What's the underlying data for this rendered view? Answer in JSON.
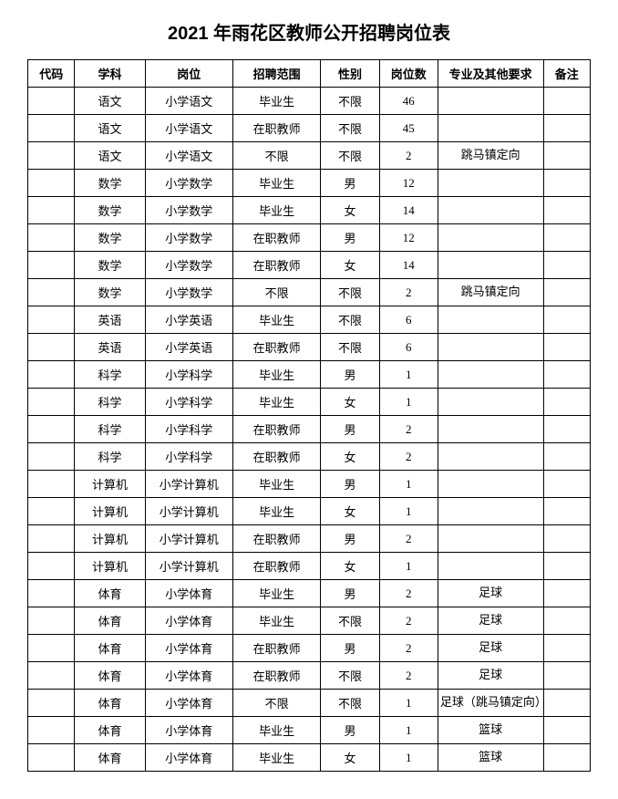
{
  "title": "2021 年雨花区教师公开招聘岗位表",
  "columns": [
    {
      "key": "code",
      "label": "代码",
      "cls": "col-code"
    },
    {
      "key": "subject",
      "label": "学科",
      "cls": "col-subject"
    },
    {
      "key": "position",
      "label": "岗位",
      "cls": "col-position"
    },
    {
      "key": "scope",
      "label": "招聘范围",
      "cls": "col-scope"
    },
    {
      "key": "gender",
      "label": "性别",
      "cls": "col-gender"
    },
    {
      "key": "count",
      "label": "岗位数",
      "cls": "col-count"
    },
    {
      "key": "req",
      "label": "专业及其他要求",
      "cls": "col-req"
    },
    {
      "key": "note",
      "label": "备注",
      "cls": "col-note"
    }
  ],
  "rows": [
    {
      "code": "",
      "subject": "语文",
      "position": "小学语文",
      "scope": "毕业生",
      "gender": "不限",
      "count": "46",
      "req": "",
      "note": ""
    },
    {
      "code": "",
      "subject": "语文",
      "position": "小学语文",
      "scope": "在职教师",
      "gender": "不限",
      "count": "45",
      "req": "",
      "note": ""
    },
    {
      "code": "",
      "subject": "语文",
      "position": "小学语文",
      "scope": "不限",
      "gender": "不限",
      "count": "2",
      "req": "跳马镇定向",
      "note": ""
    },
    {
      "code": "",
      "subject": "数学",
      "position": "小学数学",
      "scope": "毕业生",
      "gender": "男",
      "count": "12",
      "req": "",
      "note": ""
    },
    {
      "code": "",
      "subject": "数学",
      "position": "小学数学",
      "scope": "毕业生",
      "gender": "女",
      "count": "14",
      "req": "",
      "note": ""
    },
    {
      "code": "",
      "subject": "数学",
      "position": "小学数学",
      "scope": "在职教师",
      "gender": "男",
      "count": "12",
      "req": "",
      "note": ""
    },
    {
      "code": "",
      "subject": "数学",
      "position": "小学数学",
      "scope": "在职教师",
      "gender": "女",
      "count": "14",
      "req": "",
      "note": ""
    },
    {
      "code": "",
      "subject": "数学",
      "position": "小学数学",
      "scope": "不限",
      "gender": "不限",
      "count": "2",
      "req": "跳马镇定向",
      "note": ""
    },
    {
      "code": "",
      "subject": "英语",
      "position": "小学英语",
      "scope": "毕业生",
      "gender": "不限",
      "count": "6",
      "req": "",
      "note": ""
    },
    {
      "code": "",
      "subject": "英语",
      "position": "小学英语",
      "scope": "在职教师",
      "gender": "不限",
      "count": "6",
      "req": "",
      "note": ""
    },
    {
      "code": "",
      "subject": "科学",
      "position": "小学科学",
      "scope": "毕业生",
      "gender": "男",
      "count": "1",
      "req": "",
      "note": ""
    },
    {
      "code": "",
      "subject": "科学",
      "position": "小学科学",
      "scope": "毕业生",
      "gender": "女",
      "count": "1",
      "req": "",
      "note": ""
    },
    {
      "code": "",
      "subject": "科学",
      "position": "小学科学",
      "scope": "在职教师",
      "gender": "男",
      "count": "2",
      "req": "",
      "note": ""
    },
    {
      "code": "",
      "subject": "科学",
      "position": "小学科学",
      "scope": "在职教师",
      "gender": "女",
      "count": "2",
      "req": "",
      "note": ""
    },
    {
      "code": "",
      "subject": "计算机",
      "position": "小学计算机",
      "scope": "毕业生",
      "gender": "男",
      "count": "1",
      "req": "",
      "note": ""
    },
    {
      "code": "",
      "subject": "计算机",
      "position": "小学计算机",
      "scope": "毕业生",
      "gender": "女",
      "count": "1",
      "req": "",
      "note": ""
    },
    {
      "code": "",
      "subject": "计算机",
      "position": "小学计算机",
      "scope": "在职教师",
      "gender": "男",
      "count": "2",
      "req": "",
      "note": ""
    },
    {
      "code": "",
      "subject": "计算机",
      "position": "小学计算机",
      "scope": "在职教师",
      "gender": "女",
      "count": "1",
      "req": "",
      "note": ""
    },
    {
      "code": "",
      "subject": "体育",
      "position": "小学体育",
      "scope": "毕业生",
      "gender": "男",
      "count": "2",
      "req": "足球",
      "note": ""
    },
    {
      "code": "",
      "subject": "体育",
      "position": "小学体育",
      "scope": "毕业生",
      "gender": "不限",
      "count": "2",
      "req": "足球",
      "note": ""
    },
    {
      "code": "",
      "subject": "体育",
      "position": "小学体育",
      "scope": "在职教师",
      "gender": "男",
      "count": "2",
      "req": "足球",
      "note": ""
    },
    {
      "code": "",
      "subject": "体育",
      "position": "小学体育",
      "scope": "在职教师",
      "gender": "不限",
      "count": "2",
      "req": "足球",
      "note": ""
    },
    {
      "code": "",
      "subject": "体育",
      "position": "小学体育",
      "scope": "不限",
      "gender": "不限",
      "count": "1",
      "req": "足球（跳马镇定向）",
      "note": ""
    },
    {
      "code": "",
      "subject": "体育",
      "position": "小学体育",
      "scope": "毕业生",
      "gender": "男",
      "count": "1",
      "req": "篮球",
      "note": ""
    },
    {
      "code": "",
      "subject": "体育",
      "position": "小学体育",
      "scope": "毕业生",
      "gender": "女",
      "count": "1",
      "req": "篮球",
      "note": ""
    }
  ],
  "colors": {
    "background": "#ffffff",
    "border": "#000000",
    "text": "#000000"
  },
  "font_sizes": {
    "title": 20,
    "cell": 13
  }
}
